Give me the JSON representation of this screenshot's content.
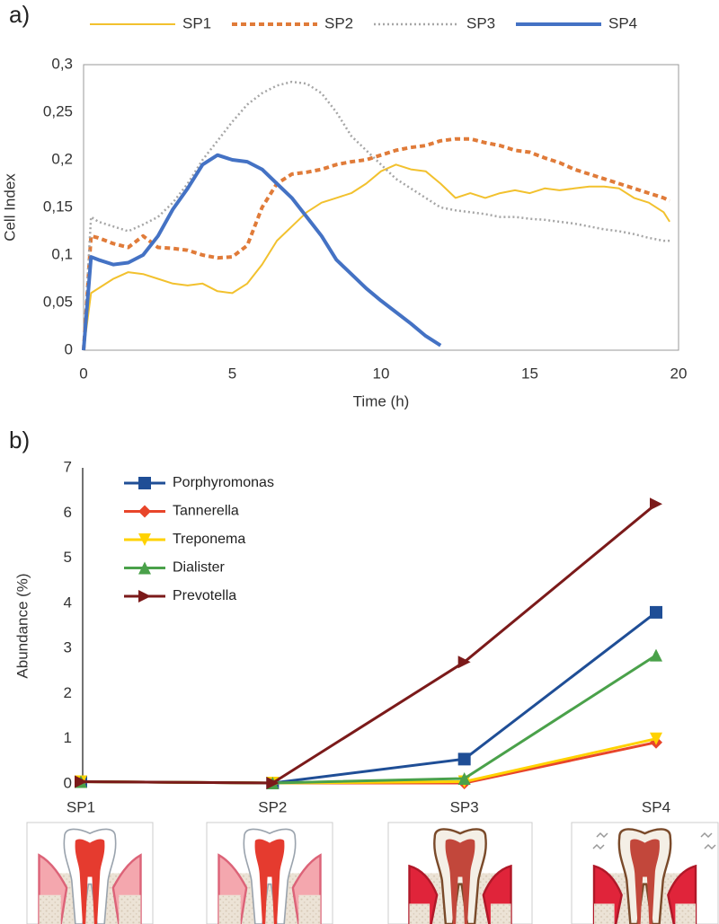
{
  "chart_data": [
    {
      "type": "line",
      "panel_label": "a)",
      "xlabel": "Time (h)",
      "ylabel": "Cell Index",
      "x": [
        0,
        0.25,
        0.5,
        1,
        1.5,
        2,
        2.5,
        3,
        3.5,
        4,
        4.5,
        5,
        5.5,
        6,
        6.5,
        7,
        7.5,
        8,
        8.5,
        9,
        9.5,
        10,
        10.5,
        11,
        11.5,
        12,
        12.5,
        13,
        13.5,
        14,
        14.5,
        15,
        15.5,
        16,
        16.5,
        17,
        17.5,
        18,
        18.5,
        19,
        19.5,
        19.7
      ],
      "series": [
        {
          "name": "SP1",
          "color": "#f2c12e",
          "line_style": "solid",
          "line_width": 2,
          "values": [
            0,
            0.06,
            0.065,
            0.075,
            0.082,
            0.08,
            0.075,
            0.07,
            0.068,
            0.07,
            0.062,
            0.06,
            0.07,
            0.09,
            0.115,
            0.13,
            0.145,
            0.155,
            0.16,
            0.165,
            0.175,
            0.188,
            0.195,
            0.19,
            0.188,
            0.175,
            0.16,
            0.165,
            0.16,
            0.165,
            0.168,
            0.165,
            0.17,
            0.168,
            0.17,
            0.172,
            0.172,
            0.17,
            0.16,
            0.155,
            0.145,
            0.135
          ]
        },
        {
          "name": "SP2",
          "color": "#e07b39",
          "line_style": "dashed",
          "line_width": 4,
          "values": [
            0,
            0.12,
            0.118,
            0.112,
            0.108,
            0.12,
            0.108,
            0.107,
            0.105,
            0.1,
            0.097,
            0.098,
            0.11,
            0.15,
            0.175,
            0.185,
            0.187,
            0.19,
            0.195,
            0.198,
            0.2,
            0.205,
            0.21,
            0.213,
            0.215,
            0.22,
            0.222,
            0.222,
            0.218,
            0.215,
            0.21,
            0.208,
            0.202,
            0.197,
            0.19,
            0.185,
            0.18,
            0.175,
            0.17,
            0.165,
            0.16,
            0.157
          ]
        },
        {
          "name": "SP3",
          "color": "#a6a6a6",
          "line_style": "dotted",
          "line_width": 2.5,
          "values": [
            0,
            0.14,
            0.135,
            0.13,
            0.125,
            0.132,
            0.14,
            0.155,
            0.175,
            0.2,
            0.22,
            0.24,
            0.258,
            0.27,
            0.278,
            0.282,
            0.28,
            0.27,
            0.25,
            0.225,
            0.21,
            0.195,
            0.18,
            0.17,
            0.16,
            0.15,
            0.147,
            0.145,
            0.143,
            0.14,
            0.14,
            0.138,
            0.137,
            0.135,
            0.133,
            0.13,
            0.127,
            0.125,
            0.122,
            0.118,
            0.115,
            0.115
          ]
        },
        {
          "name": "SP4",
          "color": "#4472c4",
          "line_style": "solid",
          "line_width": 4,
          "values": [
            0,
            0.098,
            0.095,
            0.09,
            0.092,
            0.1,
            0.12,
            0.148,
            0.17,
            0.195,
            0.205,
            0.2,
            0.198,
            0.19,
            0.175,
            0.16,
            0.14,
            0.12,
            0.095,
            0.08,
            0.065,
            0.052,
            0.04,
            0.028,
            0.015,
            0.005,
            null,
            null,
            null,
            null,
            null,
            null,
            null,
            null,
            null,
            null,
            null,
            null,
            null,
            null,
            null,
            null
          ]
        }
      ],
      "xlim": [
        0,
        20
      ],
      "xticks": [
        0,
        5,
        10,
        15,
        20
      ],
      "ylim": [
        0,
        0.3
      ],
      "yticks": [
        0,
        {
          "value": 0.05,
          "label": "0,05"
        },
        {
          "value": 0.1,
          "label": "0,1"
        },
        {
          "value": 0.15,
          "label": "0,15"
        },
        {
          "value": 0.2,
          "label": "0,2"
        },
        {
          "value": 0.25,
          "label": "0,25"
        },
        {
          "value": 0.3,
          "label": "0,3"
        }
      ],
      "grid": false,
      "frame": true,
      "legend": "top"
    },
    {
      "type": "line",
      "panel_label": "b)",
      "ylabel": "Abundance (%)",
      "categories": [
        "SP1",
        "SP2",
        "SP3",
        "SP4"
      ],
      "series": [
        {
          "name": "Porphyromonas",
          "color": "#1f4e96",
          "marker": "square",
          "values": [
            0.05,
            0.02,
            0.55,
            3.8
          ]
        },
        {
          "name": "Tannerella",
          "color": "#e8452a",
          "marker": "diamond",
          "values": [
            0.05,
            0.02,
            0.02,
            0.92
          ]
        },
        {
          "name": "Treponema",
          "color": "#ffd200",
          "marker": "triangle-down",
          "values": [
            0.05,
            0.02,
            0.05,
            1.0
          ]
        },
        {
          "name": "Dialister",
          "color": "#4aa14a",
          "marker": "triangle-up",
          "values": [
            0.05,
            0.02,
            0.12,
            2.85
          ]
        },
        {
          "name": "Prevotella",
          "color": "#7b1a1a",
          "marker": "triangle-right",
          "values": [
            0.05,
            0.02,
            2.7,
            6.2
          ]
        }
      ],
      "ylim": [
        0,
        7
      ],
      "yticks": [
        0,
        1,
        2,
        3,
        4,
        5,
        6,
        7
      ],
      "grid": false,
      "frame": false,
      "legend": "top-left"
    }
  ]
}
